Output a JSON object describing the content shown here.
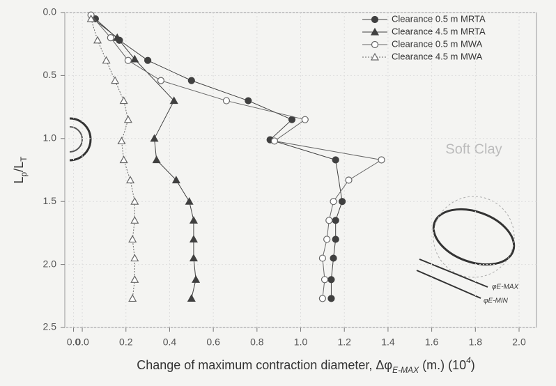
{
  "chart_data": {
    "type": "scatter",
    "x_label": [
      "Change of maximum contraction diameter, Δφ",
      "E-MAX",
      " (m.) (10",
      "4",
      ")"
    ],
    "y_label": [
      "L",
      "p",
      "/L",
      "T"
    ],
    "annotations": [
      "Soft Clay",
      "φE-MAX",
      "φE-MIN"
    ],
    "xlim": [
      -0.08,
      2.0
    ],
    "xticks": [
      {
        "value": -0.04,
        "label": "0.0"
      },
      {
        "value": 0,
        "label": "0.0"
      },
      0.2,
      0.4,
      0.6,
      0.8,
      {
        "value": 1,
        "label": "1.0"
      },
      1.2,
      1.4,
      1.6,
      1.8,
      {
        "value": 2,
        "label": "2.0"
      }
    ],
    "ylim": [
      0,
      2.5
    ],
    "y_inverted": true,
    "yticks": [
      {
        "value": 0,
        "label": "0.0"
      },
      0.5,
      {
        "value": 1,
        "label": "1.0"
      },
      1.5,
      {
        "value": 2,
        "label": "2.0"
      },
      2.5
    ],
    "legend": "upper right",
    "series": [
      {
        "name": "Clearance 0.5 m  MRTA",
        "color": "#404040",
        "marker": "circle",
        "filled": true,
        "line": "solid",
        "x": [
          0.06,
          0.17,
          0.3,
          0.5,
          0.76,
          0.96,
          0.86,
          1.16,
          1.19,
          1.16,
          1.16,
          1.15,
          1.14,
          1.14
        ],
        "y": [
          0.05,
          0.22,
          0.38,
          0.54,
          0.7,
          0.85,
          1.01,
          1.17,
          1.5,
          1.65,
          1.8,
          1.95,
          2.12,
          2.27
        ]
      },
      {
        "name": "Clearance 4.5 m  MRTA",
        "color": "#404040",
        "marker": "triangle",
        "filled": true,
        "line": "solid",
        "x": [
          0.05,
          0.16,
          0.24,
          0.42,
          0.33,
          0.34,
          0.43,
          0.49,
          0.51,
          0.51,
          0.51,
          0.52,
          0.5
        ],
        "y": [
          0.05,
          0.2,
          0.37,
          0.7,
          1.0,
          1.17,
          1.33,
          1.5,
          1.65,
          1.8,
          1.95,
          2.12,
          2.27
        ]
      },
      {
        "name": "Clearance 0.5 m  MWA",
        "color": "#666666",
        "marker": "circle",
        "filled": false,
        "line": "solid",
        "x": [
          0.04,
          0.13,
          0.21,
          0.36,
          0.66,
          1.02,
          0.88,
          1.37,
          1.22,
          1.15,
          1.13,
          1.12,
          1.1,
          1.11,
          1.1
        ],
        "y": [
          0.02,
          0.2,
          0.38,
          0.54,
          0.7,
          0.85,
          1.02,
          1.17,
          1.33,
          1.5,
          1.65,
          1.8,
          1.95,
          2.12,
          2.27
        ]
      },
      {
        "name": "Clearance 4.5 m  MWA",
        "color": "#666666",
        "marker": "triangle",
        "filled": false,
        "line": "dotted",
        "x": [
          0.04,
          0.07,
          0.11,
          0.15,
          0.19,
          0.21,
          0.18,
          0.19,
          0.22,
          0.24,
          0.24,
          0.23,
          0.24,
          0.24,
          0.23
        ],
        "y": [
          0.05,
          0.22,
          0.38,
          0.54,
          0.7,
          0.85,
          1.02,
          1.17,
          1.33,
          1.5,
          1.65,
          1.8,
          1.95,
          2.12,
          2.27
        ]
      }
    ]
  }
}
